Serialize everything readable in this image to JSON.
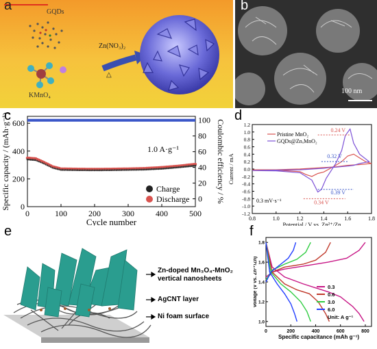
{
  "panels": {
    "a": {
      "label": "a",
      "gqds": "GQDs",
      "kmno4": "KMnO₄",
      "reagent": "Zn(NO₃)₂",
      "heat": "△"
    },
    "b": {
      "label": "b",
      "scale": "100 nm"
    },
    "c": {
      "label": "c",
      "xlabel": "Cycle number",
      "ylabel_left": "Specific capacity / (mAh·g⁻¹)",
      "ylabel_right": "Coulombic efficiency / %",
      "rate": "1.0 A·g⁻¹",
      "legend": [
        "Charge",
        "Discharge"
      ],
      "xticks": [
        "0",
        "100",
        "200",
        "300",
        "400",
        "500"
      ],
      "yticks_left": [
        "0",
        "200",
        "400",
        "600"
      ],
      "yticks_right": [
        "0",
        "20",
        "40",
        "60",
        "80",
        "100"
      ]
    },
    "d": {
      "label": "d",
      "xlabel": "Potential / V vs. Zn²⁺/Zn",
      "ylabel": "Current / mA",
      "scan": "0.3 mV·s⁻¹",
      "legend": [
        "Pristine MnO₂",
        "GQDs@ZnₓMnO₂"
      ],
      "annotations": [
        "0.24 V",
        "0.32 V",
        "0.39 V",
        "0.34 V"
      ],
      "xticks": [
        "0.8",
        "1.0",
        "1.2",
        "1.4",
        "1.6",
        "1.8"
      ],
      "yticks": [
        "1.2",
        "1.0",
        "0.8",
        "0.6",
        "0.4",
        "0.2",
        "0.0",
        "-0.2",
        "-0.4",
        "-0.6",
        "-0.8",
        "-1.0",
        "-1.2"
      ]
    },
    "e": {
      "label": "e",
      "layers": [
        "Zn-doped Mn₃O₄-MnO₂ vertical nanosheets",
        "AgCNT layer",
        "Ni foam surface"
      ]
    },
    "f": {
      "label": "f",
      "xlabel": "Specific capacitance (mAh g⁻¹)",
      "ylabel": "Voltage (V vs. Zn²⁺/Zn)",
      "xticks": [
        "0",
        "200",
        "400",
        "600",
        "800"
      ],
      "yticks": [
        "1.0",
        "1.2",
        "1.4",
        "1.6",
        "1.8"
      ],
      "legend": [
        "0.3",
        "0.6",
        "3.0",
        "6.0"
      ],
      "unit": "Unit: A g⁻¹",
      "colors": [
        "#c71585",
        "#c0392b",
        "#2ecc40",
        "#1f3cff"
      ]
    }
  },
  "chart_data": [
    {
      "type": "scatter",
      "title": "",
      "xlabel": "Cycle number",
      "ylabel": "Specific capacity / (mAh·g⁻¹)",
      "xlim": [
        0,
        500
      ],
      "ylim": [
        0,
        650
      ],
      "series": [
        {
          "name": "Charge",
          "x": [
            0,
            25,
            50,
            75,
            100,
            150,
            200,
            250,
            300,
            350,
            400,
            450,
            500
          ],
          "y": [
            345,
            340,
            315,
            285,
            270,
            268,
            267,
            268,
            270,
            272,
            278,
            288,
            300
          ]
        },
        {
          "name": "Discharge",
          "x": [
            0,
            25,
            50,
            75,
            100,
            150,
            200,
            250,
            300,
            350,
            400,
            450,
            500
          ],
          "y": [
            350,
            345,
            318,
            288,
            272,
            270,
            269,
            270,
            272,
            275,
            282,
            292,
            305
          ]
        },
        {
          "name": "Coulombic efficiency",
          "x": [
            0,
            100,
            200,
            300,
            400,
            500
          ],
          "y": [
            100,
            100,
            100,
            100,
            100,
            100
          ]
        }
      ]
    },
    {
      "type": "line",
      "xlabel": "Potential / V vs. Zn²⁺/Zn",
      "ylabel": "Current / mA",
      "xlim": [
        0.8,
        1.8
      ],
      "ylim": [
        -1.2,
        1.2
      ],
      "series": [
        {
          "name": "Pristine MnO₂",
          "x": [
            0.8,
            1.0,
            1.2,
            1.25,
            1.3,
            1.35,
            1.4,
            1.5,
            1.55,
            1.6,
            1.65,
            1.7,
            1.75,
            1.8,
            1.7,
            1.6,
            1.5,
            1.4,
            1.3,
            1.2,
            1.1,
            1.0,
            0.8
          ],
          "y": [
            -0.02,
            -0.03,
            -0.07,
            -0.15,
            -0.2,
            -0.12,
            -0.08,
            0.1,
            0.2,
            0.35,
            0.4,
            0.3,
            0.2,
            0.15,
            0.12,
            0.1,
            0.06,
            0.04,
            0.02,
            0.0,
            -0.01,
            -0.02,
            -0.02
          ]
        },
        {
          "name": "GQDs@ZnₓMnO₂",
          "x": [
            0.8,
            1.0,
            1.2,
            1.3,
            1.35,
            1.38,
            1.42,
            1.5,
            1.55,
            1.58,
            1.62,
            1.65,
            1.7,
            1.78,
            1.7,
            1.65,
            1.6,
            1.5,
            1.45,
            1.4,
            1.3,
            1.2,
            1.0,
            0.8
          ],
          "y": [
            -0.04,
            -0.05,
            -0.1,
            -0.3,
            -0.62,
            -0.55,
            -0.25,
            0.15,
            0.5,
            0.9,
            1.08,
            0.7,
            0.4,
            0.2,
            0.15,
            0.1,
            0.08,
            0.05,
            0.04,
            0.02,
            0.0,
            -0.02,
            -0.03,
            -0.04
          ]
        }
      ]
    },
    {
      "type": "line",
      "xlabel": "Specific capacitance (mAh g⁻¹)",
      "ylabel": "Voltage (V vs. Zn²⁺/Zn)",
      "xlim": [
        0,
        850
      ],
      "ylim": [
        0.95,
        1.85
      ],
      "series": [
        {
          "name": "0.3",
          "charge": {
            "x": [
              0,
              50,
              150,
              300,
              500,
              650,
              750,
              800
            ],
            "y": [
              1.45,
              1.5,
              1.53,
              1.56,
              1.6,
              1.64,
              1.72,
              1.8
            ]
          },
          "discharge": {
            "x": [
              0,
              50,
              150,
              300,
              400,
              500,
              600,
              700,
              750,
              790
            ],
            "y": [
              1.8,
              1.55,
              1.45,
              1.38,
              1.34,
              1.3,
              1.25,
              1.15,
              1.08,
              1.0
            ]
          }
        },
        {
          "name": "0.6",
          "charge": {
            "x": [
              0,
              50,
              150,
              300,
              400,
              480,
              520
            ],
            "y": [
              1.42,
              1.5,
              1.55,
              1.58,
              1.62,
              1.7,
              1.8
            ]
          },
          "discharge": {
            "x": [
              0,
              50,
              150,
              250,
              350,
              420,
              480,
              510
            ],
            "y": [
              1.8,
              1.5,
              1.38,
              1.32,
              1.28,
              1.2,
              1.08,
              1.0
            ]
          }
        },
        {
          "name": "3.0",
          "charge": {
            "x": [
              0,
              50,
              150,
              250,
              320,
              360
            ],
            "y": [
              1.42,
              1.52,
              1.58,
              1.63,
              1.7,
              1.8
            ]
          },
          "discharge": {
            "x": [
              0,
              40,
              120,
              200,
              280,
              330,
              360
            ],
            "y": [
              1.8,
              1.5,
              1.38,
              1.3,
              1.2,
              1.1,
              1.0
            ]
          }
        },
        {
          "name": "6.0",
          "charge": {
            "x": [
              0,
              40,
              120,
              180,
              220,
              240
            ],
            "y": [
              1.4,
              1.5,
              1.58,
              1.64,
              1.72,
              1.8
            ]
          },
          "discharge": {
            "x": [
              0,
              30,
              90,
              150,
              200,
              230,
              250
            ],
            "y": [
              1.8,
              1.5,
              1.38,
              1.28,
              1.18,
              1.08,
              1.0
            ]
          }
        }
      ]
    }
  ]
}
